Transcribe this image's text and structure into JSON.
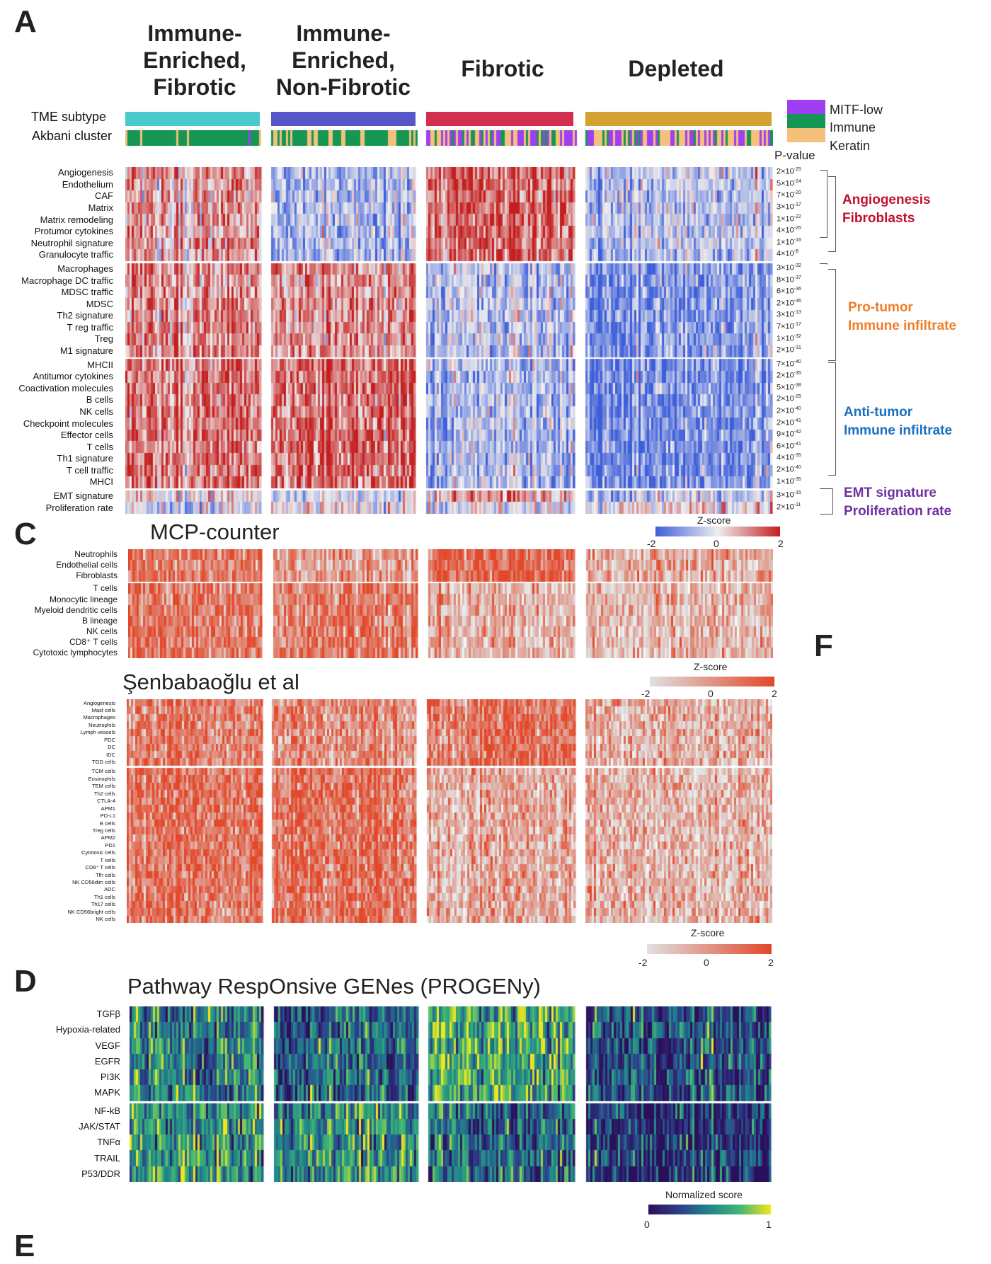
{
  "panel_letters": [
    "A",
    "C",
    "D",
    "F",
    "E"
  ],
  "groups": [
    "Immune-\nEnriched,\nFibrotic",
    "Immune-\nEnriched,\nNon-Fibrotic",
    "Fibrotic",
    "Depleted"
  ],
  "annotation_labels": {
    "tme": "TME subtype",
    "akbani": "Akbani cluster",
    "pvalue_header": "P-value"
  },
  "colors": {
    "tme": [
      "#49c9c9",
      "#5656c8",
      "#d22e4f",
      "#d5a131"
    ],
    "akbani_legend": [
      "#a03ef5",
      "#159654",
      "#f5c07a"
    ],
    "angiogenesis": "#c1112c",
    "protumor": "#ef7d27",
    "antitumor": "#1a6fc0",
    "emt": "#7030a0",
    "heat_low": "#3d5ed9",
    "heat_mid": "#eeeeee",
    "heat_high": "#c41e1e",
    "gray_low": "#e0e0e0",
    "gray_high": "#e2482a"
  },
  "akbani_legend": [
    "MITF-low",
    "Immune",
    "Keratin"
  ],
  "panelA": {
    "rows": [
      "Angiogenesis",
      "Endothelium",
      "CAF",
      "Matrix",
      "Matrix remodeling",
      "Protumor cytokines",
      "Neutrophil signature",
      "Granulocyte traffic",
      "Macrophages",
      "Macrophage DC traffic",
      "MDSC traffic",
      "MDSC",
      "Th2 signature",
      "T reg traffic",
      "Treg",
      "M1 signature",
      "MHCII",
      "Antitumor cytokines",
      "Coactivation molecules",
      "B cells",
      "NK cells",
      "Checkpoint molecules",
      "Effector cells",
      "T cells",
      "Th1 signature",
      "T cell traffic",
      "MHCI",
      "EMT signature",
      "Proliferation rate"
    ],
    "pvalues": [
      [
        "2×10",
        "-25"
      ],
      [
        "5×10",
        "-24"
      ],
      [
        "7×10",
        "-20"
      ],
      [
        "3×10",
        "-17"
      ],
      [
        "1×10",
        "-22"
      ],
      [
        "4×10",
        "-25"
      ],
      [
        "1×10",
        "-16"
      ],
      [
        "4×10",
        "-8"
      ],
      [
        "3×10",
        "-32"
      ],
      [
        "8×10",
        "-37"
      ],
      [
        "6×10",
        "-36"
      ],
      [
        "2×10",
        "-36"
      ],
      [
        "3×10",
        "-13"
      ],
      [
        "7×10",
        "-17"
      ],
      [
        "1×10",
        "-32"
      ],
      [
        "2×10",
        "-31"
      ],
      [
        "7×10",
        "-40"
      ],
      [
        "2×10",
        "-35"
      ],
      [
        "5×10",
        "-38"
      ],
      [
        "2×10",
        "-25"
      ],
      [
        "2×10",
        "-40"
      ],
      [
        "2×10",
        "-41"
      ],
      [
        "9×10",
        "-42"
      ],
      [
        "6×10",
        "-41"
      ],
      [
        "4×10",
        "-35"
      ],
      [
        "2×10",
        "-40"
      ],
      [
        "1×10",
        "-35"
      ],
      [
        "3×10",
        "-15"
      ],
      [
        "2×10",
        "-11"
      ]
    ],
    "categories": [
      {
        "label": "Angiogenesis\nFibroblasts",
        "color_key": "angiogenesis"
      },
      {
        "label": "Pro-tumor\nImmune infiltrate",
        "color_key": "protumor"
      },
      {
        "label": "Anti-tumor\nImmune infiltrate",
        "color_key": "antitumor"
      },
      {
        "label": "EMT signature\nProliferation rate",
        "color_key": "emt"
      }
    ],
    "colorbar": {
      "title": "Z-score",
      "ticks": [
        "-2",
        "0",
        "2"
      ]
    }
  },
  "panelC1": {
    "title": "MCP-counter",
    "rows": [
      "Neutrophils",
      "Endothelial cells",
      "Fibroblasts",
      "T cells",
      "Monocytic lineage",
      "Myeloid dendritic cells",
      "B lineage",
      "NK cells",
      "CD8⁺ T cells",
      "Cytotoxic lymphocytes"
    ],
    "colorbar": {
      "title": "Z-score",
      "ticks": [
        "-2",
        "0",
        "2"
      ]
    }
  },
  "panelC2": {
    "title": "Şenbabaoğlu et al",
    "rows": [
      "Angiogenesis",
      "Mast cells",
      "Macrophages",
      "Neutrophils",
      "Lymph vessels",
      "PDC",
      "DC",
      "IDC",
      "TGD cells",
      "TCM cells",
      "Eosinophils",
      "TEM cells",
      "Th2 cells",
      "CTLA-4",
      "APM1",
      "PD-L1",
      "B cells",
      "Treg cells",
      "APM2",
      "PD1",
      "Cytotoxic cells",
      "T cells",
      "CD8⁺ T cells",
      "Tfh cells",
      "NK CD56dim cells",
      "ADC",
      "Th1 cells",
      "Th17 cells",
      "NK CD56bright cells",
      "NK cells"
    ],
    "colorbar": {
      "title": "Z-score",
      "ticks": [
        "-2",
        "0",
        "2"
      ]
    }
  },
  "panelD": {
    "title": "Pathway RespOnsive GENes (PROGENy)",
    "rows": [
      "TGFβ",
      "Hypoxia-related",
      "VEGF",
      "EGFR",
      "PI3K",
      "MAPK",
      "NF-kB",
      "JAK/STAT",
      "TNFα",
      "TRAIL",
      "P53/DDR"
    ],
    "colorbar": {
      "title": "Normalized score",
      "ticks": [
        "0",
        "1"
      ]
    }
  },
  "chart_data": [
    {
      "type": "heatmap",
      "title": "",
      "columns_groups": [
        "Immune-Enriched, Fibrotic",
        "Immune-Enriched, Non-Fibrotic",
        "Fibrotic",
        "Depleted"
      ],
      "scale": [
        -2,
        2
      ],
      "approx_group_means": {
        "Angiogenesis/Fibroblasts": [
          0.8,
          -0.7,
          1.3,
          -0.6
        ],
        "Pro-tumor immune": [
          1.0,
          0.9,
          -0.6,
          -1.2
        ],
        "Anti-tumor immune": [
          1.2,
          1.3,
          -0.7,
          -1.3
        ],
        "EMT signature": [
          0.3,
          -0.3,
          0.9,
          -0.4
        ],
        "Proliferation rate": [
          -0.3,
          0.1,
          -0.2,
          0.2
        ]
      }
    },
    {
      "type": "heatmap",
      "title": "MCP-counter",
      "scale": [
        -2,
        2
      ],
      "approx_group_means": {
        "top": [
          1.0,
          0.6,
          1.5,
          0.4
        ],
        "bottom": [
          1.1,
          1.2,
          0.2,
          0.1
        ]
      }
    },
    {
      "type": "heatmap",
      "title": "Şenbabaoğlu et al",
      "scale": [
        -2,
        2
      ],
      "approx_group_means": {
        "top": [
          1.1,
          0.8,
          1.3,
          0.3
        ],
        "bottom": [
          1.3,
          1.3,
          0.3,
          0.2
        ]
      }
    },
    {
      "type": "heatmap",
      "title": "Pathway RespOnsive GENes (PROGENy)",
      "scale": [
        0,
        1
      ],
      "approx_group_means": {
        "top": [
          0.5,
          0.4,
          0.7,
          0.3
        ],
        "bottom": [
          0.6,
          0.6,
          0.4,
          0.2
        ]
      }
    }
  ]
}
